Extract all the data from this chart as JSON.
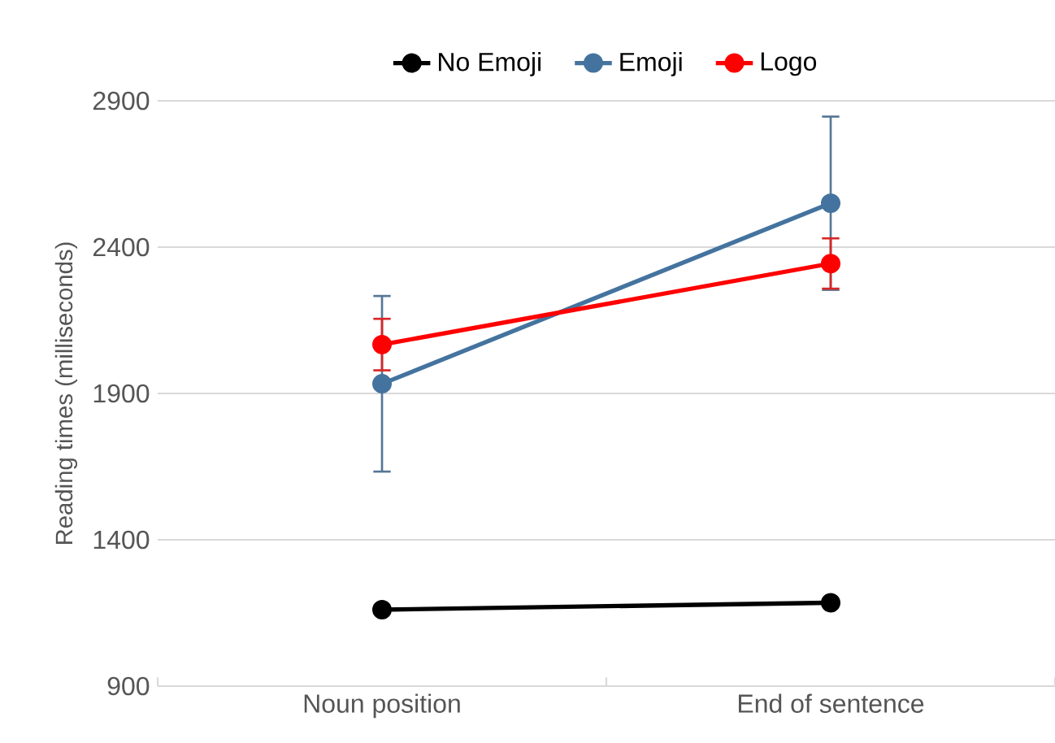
{
  "chart_data": {
    "type": "line",
    "ylabel": "Reading times (milliseconds)",
    "categories": [
      "Noun position",
      "End of sentence"
    ],
    "series": [
      {
        "name": "No Emoji",
        "color": "#000000",
        "values": [
          1161,
          1185
        ]
      },
      {
        "name": "Emoji",
        "color": "#44739f",
        "values": [
          1933,
          2550
        ],
        "errors": [
          300,
          296
        ]
      },
      {
        "name": "Logo",
        "color": "#ff0000",
        "values": [
          2067,
          2344
        ],
        "errors": [
          88,
          86
        ]
      }
    ],
    "ylim": [
      900,
      2900
    ],
    "yticks": [
      900,
      1400,
      1900,
      2400,
      2900
    ],
    "grid": "y",
    "legend": "top",
    "marker": "circle",
    "line_style": "solid"
  }
}
